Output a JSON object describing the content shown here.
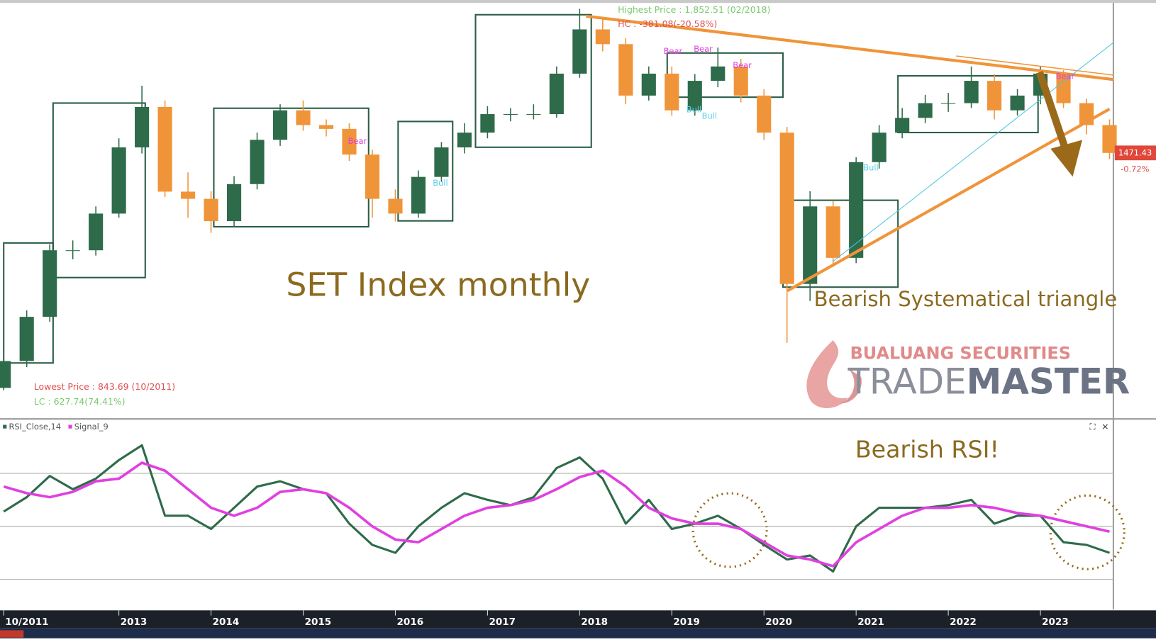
{
  "chart_data": [
    {
      "type": "candlestick",
      "up_color": "#2e6b4a",
      "down_color": "#f0943a",
      "x": [
        2011.75,
        2012,
        2012.25,
        2012.5,
        2012.75,
        2013,
        2013.25,
        2013.5,
        2013.75,
        2014,
        2014.25,
        2014.5,
        2014.75,
        2015,
        2015.25,
        2015.5,
        2015.75,
        2016,
        2016.25,
        2016.5,
        2016.75,
        2017,
        2017.25,
        2017.5,
        2017.75,
        2018,
        2018.25,
        2018.5,
        2018.75,
        2019,
        2019.25,
        2019.5,
        2019.75,
        2020,
        2020.25,
        2020.5,
        2020.75,
        2021,
        2021.25,
        2021.5,
        2021.75,
        2022,
        2022.25,
        2022.5,
        2022.75,
        2023,
        2023.25,
        2023.5,
        2023.75
      ],
      "open": [
        850,
        921,
        1038,
        1214,
        1214,
        1311,
        1486,
        1593,
        1369,
        1350,
        1291,
        1389,
        1506,
        1584,
        1545,
        1535,
        1467,
        1350,
        1311,
        1408,
        1486,
        1525,
        1574,
        1574,
        1574,
        1681,
        1798,
        1759,
        1623,
        1681,
        1584,
        1662,
        1700,
        1623,
        1525,
        1125,
        1330,
        1194,
        1447,
        1525,
        1564,
        1603,
        1603,
        1662,
        1584,
        1623,
        1681,
        1603,
        1545
      ],
      "high": [
        940,
        1055,
        1230,
        1240,
        1330,
        1510,
        1649,
        1610,
        1420,
        1370,
        1410,
        1525,
        1600,
        1610,
        1560,
        1550,
        1480,
        1375,
        1425,
        1500,
        1550,
        1595,
        1590,
        1600,
        1700,
        1852.51,
        1830,
        1775,
        1700,
        1700,
        1680,
        1750,
        1720,
        1640,
        1540,
        1370,
        1345,
        1460,
        1545,
        1590,
        1625,
        1630,
        1700,
        1680,
        1640,
        1700,
        1690,
        1615,
        1560
      ],
      "low": [
        843.69,
        905,
        1025,
        1190,
        1200,
        1300,
        1470,
        1355,
        1300,
        1260,
        1275,
        1375,
        1490,
        1530,
        1515,
        1450,
        1300,
        1290,
        1300,
        1395,
        1470,
        1510,
        1555,
        1560,
        1565,
        1670,
        1740,
        1600,
        1610,
        1570,
        1570,
        1645,
        1605,
        1505,
        969,
        1080,
        1170,
        1180,
        1430,
        1510,
        1550,
        1580,
        1590,
        1560,
        1570,
        1600,
        1590,
        1520,
        1455
      ],
      "close": [
        921,
        1038,
        1214,
        1214,
        1311,
        1486,
        1593,
        1369,
        1350,
        1291,
        1389,
        1506,
        1584,
        1545,
        1535,
        1467,
        1350,
        1311,
        1408,
        1486,
        1525,
        1574,
        1574,
        1574,
        1681,
        1798,
        1759,
        1623,
        1681,
        1584,
        1662,
        1700,
        1623,
        1525,
        1125,
        1330,
        1194,
        1447,
        1525,
        1564,
        1603,
        1603,
        1662,
        1584,
        1623,
        1681,
        1603,
        1545,
        1471.43
      ],
      "xlim": [
        2011.75,
        2023.79
      ],
      "ylim": [
        770,
        1866
      ],
      "highest_label": "Highest Price : 1,852.51 (02/2018)",
      "hc_label": "HC : -381.08(-20.58%)",
      "lowest_label": "Lowest Price : 843.69 (10/2011)",
      "lc_label": "LC : 627.74(74.41%)",
      "last_price": 1471.43,
      "change_label": "-0.72%",
      "title": "SET Index monthly",
      "annotation": "Bearish Systematical triangle",
      "signal_labels": [
        "Bear",
        "Bear",
        "Bear",
        "Bear",
        "Bear",
        "Bull",
        "Bull",
        "Bull",
        "Bull"
      ]
    },
    {
      "type": "line",
      "x": [
        2011.75,
        2012,
        2012.25,
        2012.5,
        2012.75,
        2013,
        2013.25,
        2013.5,
        2013.75,
        2014,
        2014.25,
        2014.5,
        2014.75,
        2015,
        2015.25,
        2015.5,
        2015.75,
        2016,
        2016.25,
        2016.5,
        2016.75,
        2017,
        2017.25,
        2017.5,
        2017.75,
        2018,
        2018.25,
        2018.5,
        2018.75,
        2019,
        2019.25,
        2019.5,
        2019.75,
        2020,
        2020.25,
        2020.5,
        2020.75,
        2021,
        2021.25,
        2021.5,
        2021.75,
        2022,
        2022.25,
        2022.5,
        2022.75,
        2023,
        2023.25,
        2023.5,
        2023.75
      ],
      "series": [
        {
          "name": "RSI_Close,14",
          "color": "#2e6b4a",
          "values": [
            55.6,
            61,
            69,
            64,
            68,
            75,
            80.6,
            54,
            54,
            49,
            57,
            65,
            67,
            64,
            62.5,
            51,
            43,
            40,
            50,
            57,
            62.5,
            60,
            58,
            61,
            72,
            76,
            68,
            51,
            60,
            49,
            51,
            54,
            49,
            43,
            37.5,
            39,
            33,
            50,
            57,
            57,
            57,
            58,
            60,
            51,
            54,
            54,
            44,
            43,
            40
          ]
        },
        {
          "name": "Signal_9",
          "color": "#e040e0",
          "values": [
            65,
            62.5,
            61,
            63,
            67,
            68,
            74,
            71,
            64,
            57,
            54,
            57,
            63,
            64,
            62.5,
            57,
            50,
            45,
            44,
            49,
            54,
            57,
            58,
            60,
            64,
            68.6,
            71,
            65,
            57,
            53,
            51,
            51,
            49,
            44,
            39,
            37.5,
            35,
            44,
            49,
            54,
            57,
            57,
            58,
            57,
            55,
            54,
            52,
            50,
            48
          ]
        }
      ],
      "levels": [
        30,
        50,
        70
      ],
      "xlim": [
        2011.75,
        2023.79
      ],
      "ylim": [
        18.6,
        89.7
      ],
      "xticks": [
        {
          "value": 2011.75,
          "label": "10/2011"
        },
        2013,
        2014,
        2015,
        2016,
        2017,
        2018,
        2019,
        2020,
        2021,
        2022,
        2023
      ],
      "annotation": "Bearish RSI!",
      "panel_controls": [
        "⛶",
        "×"
      ]
    }
  ],
  "watermark": {
    "company": "BUALUANG SECURITIES",
    "brand_light": "TRADE",
    "brand_bold": "MASTER"
  }
}
